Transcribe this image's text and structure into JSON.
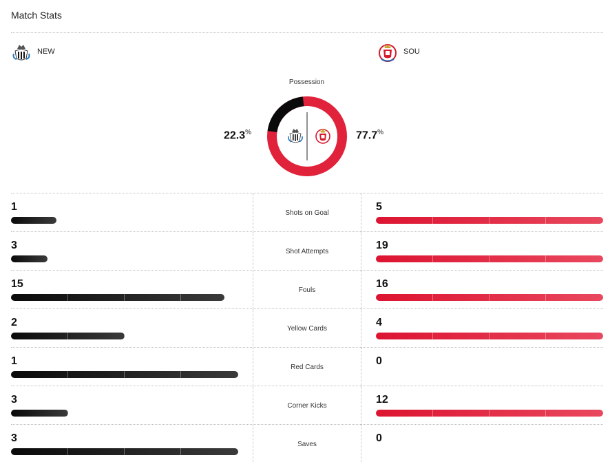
{
  "header": {
    "title": "Match Stats"
  },
  "teams": {
    "home": {
      "abbr": "NEW",
      "crest_icon": "newcastle-crest-icon",
      "color": "#111111"
    },
    "away": {
      "abbr": "SOU",
      "crest_icon": "southampton-crest-icon",
      "color": "#e0223a"
    }
  },
  "possession": {
    "label": "Possession",
    "home": {
      "value": "22.3",
      "unit": "%"
    },
    "away": {
      "value": "77.7",
      "unit": "%"
    },
    "home_fraction": 0.223
  },
  "stats": [
    {
      "label": "Shots on Goal",
      "home": "1",
      "away": "5",
      "home_pct": 0.2,
      "away_pct": 1.0
    },
    {
      "label": "Shot Attempts",
      "home": "3",
      "away": "19",
      "home_pct": 0.16,
      "away_pct": 1.0
    },
    {
      "label": "Fouls",
      "home": "15",
      "away": "16",
      "home_pct": 0.94,
      "away_pct": 1.0
    },
    {
      "label": "Yellow Cards",
      "home": "2",
      "away": "4",
      "home_pct": 0.5,
      "away_pct": 1.0
    },
    {
      "label": "Red Cards",
      "home": "1",
      "away": "0",
      "home_pct": 1.0,
      "away_pct": 0.0
    },
    {
      "label": "Corner Kicks",
      "home": "3",
      "away": "12",
      "home_pct": 0.25,
      "away_pct": 1.0
    },
    {
      "label": "Saves",
      "home": "3",
      "away": "0",
      "home_pct": 1.0,
      "away_pct": 0.0
    }
  ]
}
